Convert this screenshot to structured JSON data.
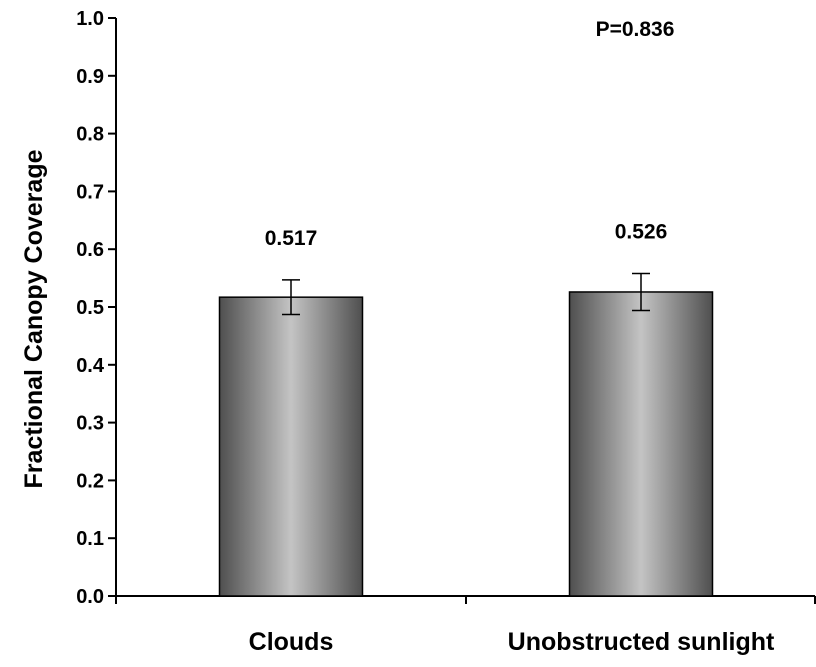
{
  "chart_data": {
    "type": "bar",
    "title": "",
    "xlabel": "",
    "ylabel": "Fractional Canopy Coverage",
    "categories": [
      "Clouds",
      "Unobstructed sunlight"
    ],
    "values": [
      0.517,
      0.526
    ],
    "value_labels": [
      "0.517",
      "0.526"
    ],
    "error": [
      0.03,
      0.032
    ],
    "ylim": [
      0,
      1.0
    ],
    "yticks": [
      0.0,
      0.1,
      0.2,
      0.3,
      0.4,
      0.5,
      0.6,
      0.7,
      0.8,
      0.9,
      1.0
    ],
    "ytick_labels": [
      "0.0",
      "0.1",
      "0.2",
      "0.3",
      "0.4",
      "0.5",
      "0.6",
      "0.7",
      "0.8",
      "0.9",
      "1.0"
    ],
    "annotation": "P=0.836",
    "grid": false,
    "legend": "none"
  },
  "colors": {
    "bar_dark": "#4f4f4f",
    "bar_light": "#c4c4c4",
    "axis": "#000000",
    "text": "#000000"
  }
}
